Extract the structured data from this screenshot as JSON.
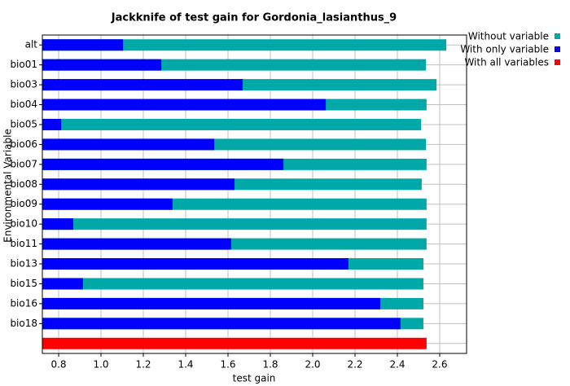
{
  "chart_data": {
    "type": "bar",
    "orientation": "horizontal",
    "title": "Jackknife of test gain for Gordonia_lasianthus_9",
    "xlabel": "test gain",
    "ylabel": "Environmental Variable",
    "categories": [
      "alt",
      "bio01",
      "bio03",
      "bio04",
      "bio05",
      "bio06",
      "bio07",
      "bio08",
      "bio09",
      "bio10",
      "bio11",
      "bio13",
      "bio15",
      "bio16",
      "bio18"
    ],
    "series": [
      {
        "name": "Without variable",
        "color": "#00a8a8",
        "values": [
          2.631,
          2.535,
          2.585,
          2.538,
          2.512,
          2.535,
          2.538,
          2.515,
          2.538,
          2.538,
          2.538,
          2.523,
          2.523,
          2.523,
          2.523
        ]
      },
      {
        "name": "With only variable",
        "color": "#0000ff",
        "values": [
          1.104,
          1.285,
          1.669,
          2.062,
          0.812,
          1.535,
          1.862,
          1.631,
          1.338,
          0.869,
          1.615,
          2.169,
          0.915,
          2.319,
          2.415
        ]
      }
    ],
    "all_variables": {
      "name": "With all variables",
      "color": "#ff0000",
      "value": 2.538
    },
    "xlim": [
      0.723,
      2.727
    ],
    "xticks": [
      0.8,
      {
        "value": 1,
        "label": "1.0"
      },
      1.2,
      1.4,
      1.6,
      1.8,
      {
        "value": 2,
        "label": "2.0"
      },
      2.2,
      2.4,
      2.6
    ],
    "grid": true,
    "legend": "top-right"
  }
}
